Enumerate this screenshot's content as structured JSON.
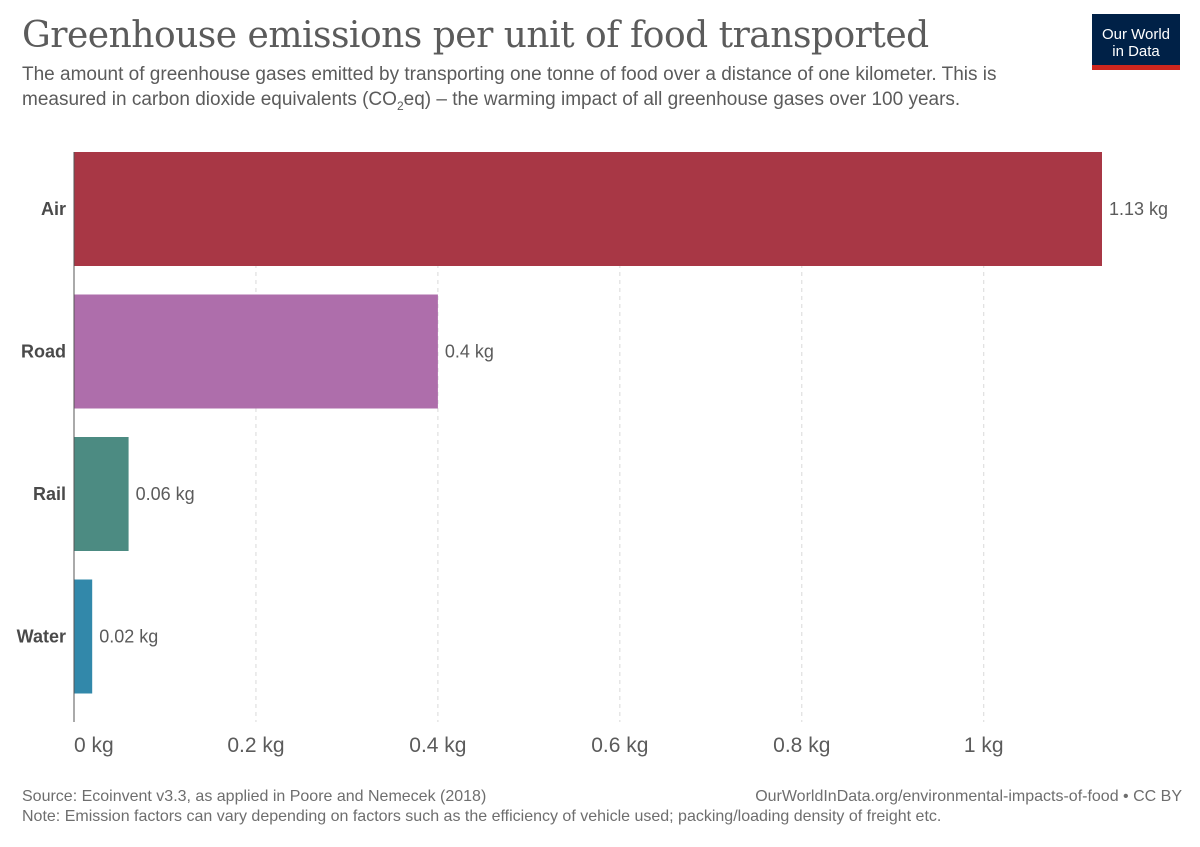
{
  "header": {
    "title": "Greenhouse emissions per unit of food transported",
    "subtitle_part1": "The amount of greenhouse gases emitted by transporting one tonne of food over a distance of one kilometer. This is measured in carbon dioxide equivalents (CO",
    "subtitle_sub": "2",
    "subtitle_part2": "eq) – the warming impact of all greenhouse gases over 100 years."
  },
  "logo": {
    "line1": "Our World",
    "line2": "in Data",
    "bg_color": "#002147",
    "accent_color": "#ce261e"
  },
  "chart_data": {
    "type": "bar",
    "orientation": "horizontal",
    "categories": [
      "Air",
      "Road",
      "Rail",
      "Water"
    ],
    "values": [
      1.13,
      0.4,
      0.06,
      0.02
    ],
    "value_labels": [
      "1.13 kg",
      "0.4 kg",
      "0.06 kg",
      "0.02 kg"
    ],
    "colors": [
      "#a83745",
      "#ae6eab",
      "#4c8b82",
      "#3288aa"
    ],
    "xlim": [
      0,
      1.13
    ],
    "xticks": [
      0,
      0.2,
      0.4,
      0.6,
      0.8,
      1
    ],
    "xtick_labels": [
      "0 kg",
      "0.2 kg",
      "0.4 kg",
      "0.6 kg",
      "0.8 kg",
      "1 kg"
    ],
    "grid": "vertical dashed"
  },
  "footer": {
    "source": "Source: Ecoinvent v3.3, as applied in Poore and Nemecek (2018)",
    "note": "Note: Emission factors can vary depending on factors such as the efficiency of vehicle used; packing/loading density of freight etc.",
    "url": "OurWorldInData.org/environmental-impacts-of-food • CC BY"
  }
}
